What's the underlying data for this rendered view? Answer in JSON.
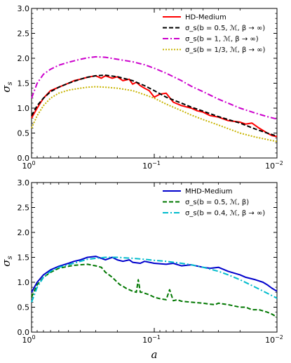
{
  "chart_data": [
    {
      "type": "line",
      "x_scale": "log",
      "x_reversed": true,
      "xlim": [
        1.0,
        0.01
      ],
      "ylim": [
        0.0,
        3.0
      ],
      "xticks": [
        {
          "label": "10",
          "exp": "0"
        },
        {
          "label": "10",
          "exp": "−1"
        },
        {
          "label": "10",
          "exp": "−2"
        }
      ],
      "yticks": [
        "0.0",
        "0.5",
        "1.0",
        "1.5",
        "2.0",
        "2.5",
        "3.0"
      ],
      "xlabel": "",
      "ylabel": "σ",
      "ylabel_sub": "s",
      "legend_position": "top-right",
      "series": [
        {
          "name": "HD-Medium",
          "color": "#ff0000",
          "dash": "solid",
          "x": [
            1.0,
            0.95,
            0.9,
            0.85,
            0.8,
            0.7,
            0.6,
            0.5,
            0.45,
            0.4,
            0.35,
            0.3,
            0.27,
            0.25,
            0.22,
            0.2,
            0.18,
            0.16,
            0.15,
            0.14,
            0.13,
            0.12,
            0.11,
            0.1,
            0.09,
            0.08,
            0.07,
            0.06,
            0.05,
            0.045,
            0.04,
            0.035,
            0.03,
            0.025,
            0.02,
            0.018,
            0.016,
            0.014,
            0.012,
            0.011,
            0.01
          ],
          "y": [
            0.8,
            0.9,
            1.0,
            1.1,
            1.2,
            1.35,
            1.42,
            1.5,
            1.55,
            1.58,
            1.62,
            1.65,
            1.6,
            1.65,
            1.6,
            1.63,
            1.55,
            1.58,
            1.48,
            1.52,
            1.45,
            1.4,
            1.35,
            1.22,
            1.28,
            1.3,
            1.12,
            1.05,
            1.0,
            0.95,
            0.92,
            0.85,
            0.82,
            0.75,
            0.72,
            0.68,
            0.7,
            0.6,
            0.5,
            0.45,
            0.43
          ]
        },
        {
          "name": "σ_s(b = 0.5, ℳ, β → ∞)",
          "color": "#000000",
          "dash": "6,3",
          "x": [
            1.0,
            0.9,
            0.8,
            0.7,
            0.6,
            0.5,
            0.4,
            0.35,
            0.3,
            0.25,
            0.2,
            0.15,
            0.12,
            0.1,
            0.08,
            0.06,
            0.05,
            0.04,
            0.03,
            0.025,
            0.02,
            0.015,
            0.012,
            0.01
          ],
          "y": [
            0.85,
            1.05,
            1.2,
            1.33,
            1.42,
            1.5,
            1.58,
            1.62,
            1.65,
            1.66,
            1.63,
            1.55,
            1.45,
            1.35,
            1.22,
            1.1,
            1.02,
            0.94,
            0.83,
            0.77,
            0.7,
            0.58,
            0.5,
            0.44
          ]
        },
        {
          "name": "σ_s(b = 1, ℳ, β → ∞)",
          "color": "#cc00cc",
          "dash": "8,3,2,3",
          "x": [
            1.0,
            0.9,
            0.8,
            0.7,
            0.6,
            0.5,
            0.4,
            0.35,
            0.3,
            0.25,
            0.2,
            0.15,
            0.12,
            0.1,
            0.08,
            0.06,
            0.05,
            0.04,
            0.03,
            0.02,
            0.015,
            0.012,
            0.01
          ],
          "y": [
            1.2,
            1.5,
            1.68,
            1.78,
            1.86,
            1.92,
            1.98,
            2.01,
            2.03,
            2.02,
            1.98,
            1.93,
            1.87,
            1.8,
            1.7,
            1.55,
            1.44,
            1.33,
            1.18,
            1.0,
            0.9,
            0.83,
            0.78
          ]
        },
        {
          "name": "σ_s(b = 1/3, ℳ, β → ∞)",
          "color": "#c8b400",
          "dash": "2,2",
          "x": [
            1.0,
            0.9,
            0.8,
            0.7,
            0.6,
            0.5,
            0.4,
            0.35,
            0.3,
            0.25,
            0.2,
            0.15,
            0.12,
            0.1,
            0.08,
            0.06,
            0.05,
            0.04,
            0.03,
            0.02,
            0.015,
            0.012,
            0.01
          ],
          "y": [
            0.6,
            0.85,
            1.05,
            1.2,
            1.3,
            1.36,
            1.4,
            1.42,
            1.43,
            1.42,
            1.4,
            1.35,
            1.27,
            1.2,
            1.08,
            0.95,
            0.86,
            0.77,
            0.66,
            0.5,
            0.42,
            0.37,
            0.33
          ]
        }
      ]
    },
    {
      "type": "line",
      "x_scale": "log",
      "x_reversed": true,
      "xlim": [
        1.0,
        0.01
      ],
      "ylim": [
        0.0,
        3.0
      ],
      "xticks": [
        {
          "label": "10",
          "exp": "0"
        },
        {
          "label": "10",
          "exp": "−1"
        },
        {
          "label": "10",
          "exp": "−2"
        }
      ],
      "yticks": [
        "0.0",
        "0.5",
        "1.0",
        "1.5",
        "2.0",
        "2.5",
        "3.0"
      ],
      "xlabel": "a",
      "ylabel": "σ",
      "ylabel_sub": "s",
      "legend_position": "top-right",
      "series": [
        {
          "name": "MHD-Medium",
          "color": "#0000cc",
          "dash": "solid",
          "x": [
            1.0,
            0.9,
            0.8,
            0.7,
            0.6,
            0.5,
            0.45,
            0.4,
            0.35,
            0.3,
            0.27,
            0.25,
            0.22,
            0.2,
            0.18,
            0.16,
            0.15,
            0.13,
            0.12,
            0.1,
            0.08,
            0.07,
            0.06,
            0.05,
            0.04,
            0.035,
            0.03,
            0.025,
            0.02,
            0.018,
            0.015,
            0.013,
            0.012,
            0.011,
            0.01
          ],
          "y": [
            0.8,
            1.0,
            1.15,
            1.25,
            1.32,
            1.38,
            1.42,
            1.45,
            1.5,
            1.52,
            1.48,
            1.45,
            1.5,
            1.45,
            1.42,
            1.45,
            1.4,
            1.38,
            1.42,
            1.38,
            1.36,
            1.38,
            1.33,
            1.35,
            1.3,
            1.28,
            1.3,
            1.22,
            1.15,
            1.1,
            1.05,
            1.0,
            0.95,
            0.88,
            0.82
          ]
        },
        {
          "name": "σ_s(b = 0.5, ℳ, β)",
          "color": "#007700",
          "dash": "6,3",
          "x": [
            1.0,
            0.9,
            0.8,
            0.7,
            0.6,
            0.5,
            0.45,
            0.4,
            0.35,
            0.3,
            0.27,
            0.25,
            0.22,
            0.2,
            0.19,
            0.18,
            0.17,
            0.16,
            0.15,
            0.14,
            0.135,
            0.13,
            0.125,
            0.12,
            0.11,
            0.1,
            0.09,
            0.08,
            0.075,
            0.07,
            0.065,
            0.06,
            0.05,
            0.04,
            0.035,
            0.032,
            0.03,
            0.025,
            0.02,
            0.018,
            0.016,
            0.014,
            0.012,
            0.011,
            0.01
          ],
          "y": [
            0.7,
            0.95,
            1.1,
            1.2,
            1.28,
            1.32,
            1.34,
            1.35,
            1.36,
            1.33,
            1.3,
            1.2,
            1.1,
            1.0,
            0.95,
            0.92,
            0.88,
            0.85,
            0.82,
            0.8,
            1.05,
            0.8,
            0.8,
            0.78,
            0.75,
            0.7,
            0.67,
            0.65,
            0.85,
            0.63,
            0.65,
            0.62,
            0.6,
            0.58,
            0.56,
            0.55,
            0.58,
            0.55,
            0.5,
            0.5,
            0.45,
            0.45,
            0.4,
            0.36,
            0.3
          ]
        },
        {
          "name": "σ_s(b = 0.4, ℳ, β → ∞)",
          "color": "#00bbcc",
          "dash": "8,3,2,3",
          "x": [
            1.0,
            0.9,
            0.8,
            0.7,
            0.6,
            0.5,
            0.4,
            0.35,
            0.3,
            0.25,
            0.2,
            0.15,
            0.12,
            0.1,
            0.08,
            0.06,
            0.05,
            0.04,
            0.03,
            0.025,
            0.02,
            0.015,
            0.012,
            0.01
          ],
          "y": [
            0.6,
            0.9,
            1.1,
            1.22,
            1.3,
            1.35,
            1.42,
            1.46,
            1.48,
            1.5,
            1.5,
            1.48,
            1.46,
            1.44,
            1.42,
            1.38,
            1.35,
            1.3,
            1.22,
            1.15,
            1.05,
            0.9,
            0.78,
            0.68
          ]
        }
      ]
    }
  ]
}
